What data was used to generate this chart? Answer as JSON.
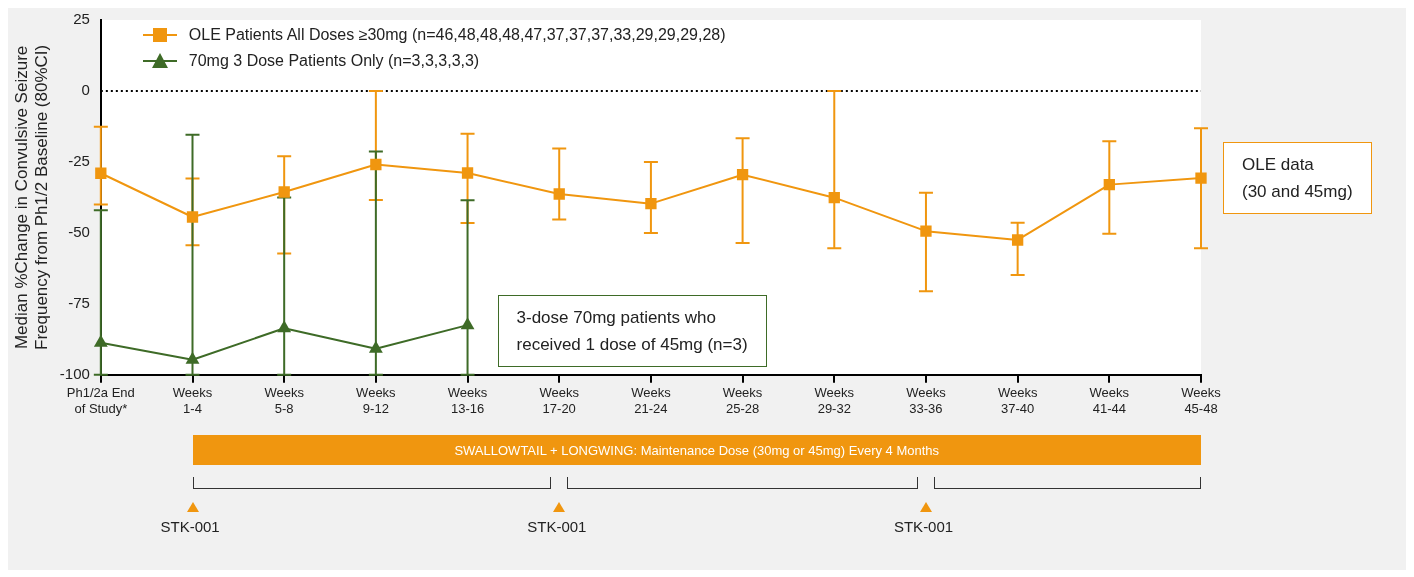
{
  "chart_data": {
    "type": "line",
    "ylabel": "Median %Change in Convulsive Seizure\nFrequency from Ph1/2 Baseline (80%CI)",
    "categories": [
      "Ph1/2a End\nof Study*",
      "Weeks\n1-4",
      "Weeks\n5-8",
      "Weeks\n9-12",
      "Weeks\n13-16",
      "Weeks\n17-20",
      "Weeks\n21-24",
      "Weeks\n25-28",
      "Weeks\n29-32",
      "Weeks\n33-36",
      "Weeks\n37-40",
      "Weeks\n41-44",
      "Weeks\n45-48"
    ],
    "series": [
      {
        "name": "OLE Patients All Doses ≥30mg (n=46,48,48,48,47,37,37,37,33,29,29,29,28)",
        "color": "#f0960f",
        "marker": "square",
        "values": [
          -29,
          -44.4,
          -35.6,
          -25.9,
          -28.9,
          -36.3,
          -39.7,
          -29.5,
          -37.6,
          -49.4,
          -52.5,
          -33,
          -30.7
        ],
        "errors": [
          [
            -40,
            -12.6
          ],
          [
            -54.4,
            -30.8
          ],
          [
            -57.3,
            -23
          ],
          [
            -38.4,
            0
          ],
          [
            -46.5,
            -15.1
          ],
          [
            -45.3,
            -20.3
          ],
          [
            -50,
            -25
          ],
          [
            -53.6,
            -16.7
          ],
          [
            -55.4,
            0
          ],
          [
            -70.6,
            -35.9
          ],
          [
            -64.8,
            -46.4
          ],
          [
            -50.3,
            -17.7
          ],
          [
            -55.4,
            -13.1
          ]
        ]
      },
      {
        "name": "70mg 3 Dose Patients Only (n=3,3,3,3,3)",
        "color": "#3e6b27",
        "marker": "triangle",
        "values": [
          -88.7,
          -94.7,
          -83.6,
          -90.8,
          -82.5,
          null,
          null,
          null,
          null,
          null,
          null,
          null,
          null
        ],
        "errors": [
          [
            -100,
            -42
          ],
          [
            -100,
            -15.4
          ],
          [
            -100,
            -37.5
          ],
          [
            -100,
            -21.3
          ],
          [
            -100,
            -38.5
          ],
          null,
          null,
          null,
          null,
          null,
          null,
          null,
          null
        ]
      }
    ],
    "ylim": [
      -100,
      25
    ],
    "yticks": [
      -100,
      -75,
      -50,
      -25,
      0,
      25
    ],
    "ref_lines": [
      {
        "axis": "y",
        "value": 0,
        "color": "#000000",
        "line_style": "dotted"
      }
    ],
    "legend": "top left",
    "annotations": [
      {
        "text": "OLE data\n(30 and 45mg)",
        "x": "Weeks\n45-48",
        "y": -30.7
      },
      {
        "text": "3-dose 70mg patients who\nreceived 1 dose of 45mg (n=3)",
        "x": "Weeks\n13-16",
        "y": -82.5
      },
      "SWALLOWTAIL + LONGWING: Maintenance Dose (30mg or 45mg) Every 4 Months",
      "STK-001",
      "STK-001",
      "STK-001"
    ]
  }
}
